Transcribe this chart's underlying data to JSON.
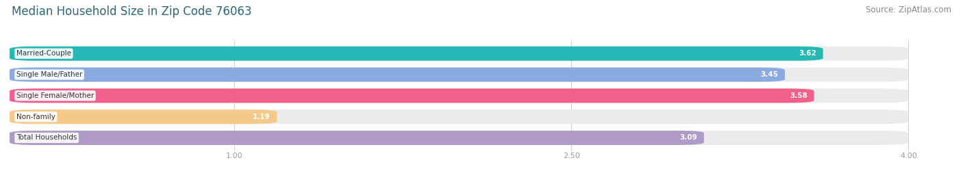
{
  "title": "Median Household Size in Zip Code 76063",
  "source": "Source: ZipAtlas.com",
  "categories": [
    "Married-Couple",
    "Single Male/Father",
    "Single Female/Mother",
    "Non-family",
    "Total Households"
  ],
  "values": [
    3.62,
    3.45,
    3.58,
    1.19,
    3.09
  ],
  "bar_colors": [
    "#26B8B4",
    "#8BAAE0",
    "#F0608A",
    "#F5C98A",
    "#B09AC8"
  ],
  "bar_bg_color": "#EBEBEB",
  "xlim": [
    0.0,
    4.2
  ],
  "xmin": 0.0,
  "xmax": 4.0,
  "xticks": [
    1.0,
    2.5,
    4.0
  ],
  "title_fontsize": 12,
  "source_fontsize": 8.5,
  "label_fontsize": 7.5,
  "value_fontsize": 7.5,
  "background_color": "#FFFFFF",
  "title_color": "#2D6778",
  "source_color": "#888888",
  "tick_color": "#999999"
}
